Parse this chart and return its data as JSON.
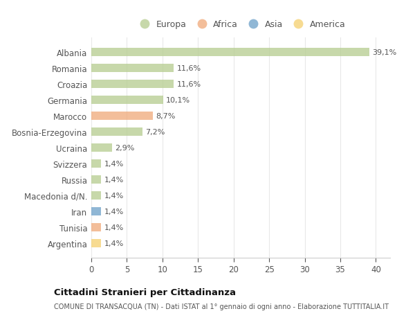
{
  "categories": [
    "Albania",
    "Romania",
    "Croazia",
    "Germania",
    "Marocco",
    "Bosnia-Erzegovina",
    "Ucraina",
    "Svizzera",
    "Russia",
    "Macedonia d/N.",
    "Iran",
    "Tunisia",
    "Argentina"
  ],
  "values": [
    39.1,
    11.6,
    11.6,
    10.1,
    8.7,
    7.2,
    2.9,
    1.4,
    1.4,
    1.4,
    1.4,
    1.4,
    1.4
  ],
  "labels": [
    "39,1%",
    "11,6%",
    "11,6%",
    "10,1%",
    "8,7%",
    "7,2%",
    "2,9%",
    "1,4%",
    "1,4%",
    "1,4%",
    "1,4%",
    "1,4%",
    "1,4%"
  ],
  "colors": [
    "#b5cc8e",
    "#b5cc8e",
    "#b5cc8e",
    "#b5cc8e",
    "#f0a878",
    "#b5cc8e",
    "#b5cc8e",
    "#b5cc8e",
    "#b5cc8e",
    "#b5cc8e",
    "#6b9fc8",
    "#f0a878",
    "#f5d06e"
  ],
  "legend_labels": [
    "Europa",
    "Africa",
    "Asia",
    "America"
  ],
  "legend_colors": [
    "#b5cc8e",
    "#f0a878",
    "#6b9fc8",
    "#f5d06e"
  ],
  "title": "Cittadini Stranieri per Cittadinanza",
  "subtitle": "COMUNE DI TRANSACQUA (TN) - Dati ISTAT al 1° gennaio di ogni anno - Elaborazione TUTTITALIA.IT",
  "xlim": [
    0,
    42
  ],
  "xticks": [
    0,
    5,
    10,
    15,
    20,
    25,
    30,
    35,
    40
  ],
  "bg_color": "#ffffff",
  "grid_color": "#e8e8e8",
  "bar_alpha": 0.75,
  "bar_height": 0.55
}
